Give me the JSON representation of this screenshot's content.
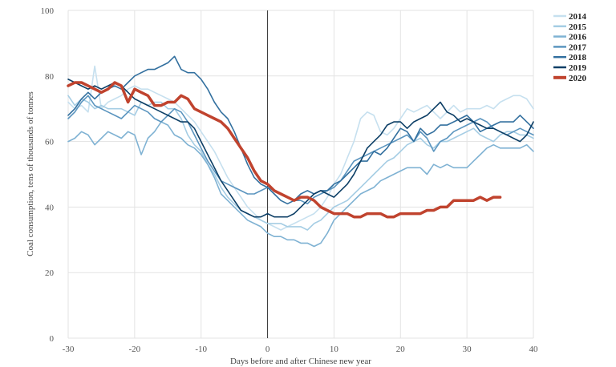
{
  "chart_data": {
    "type": "line",
    "title": "",
    "xlabel": "Days before and after Chinese new year",
    "ylabel": "Coal consumption, tens of thousands of tonnes",
    "xlim": [
      -30,
      40
    ],
    "ylim": [
      0,
      100
    ],
    "x_ticks": [
      -30,
      -20,
      -10,
      0,
      10,
      20,
      30,
      40
    ],
    "y_ticks": [
      0,
      20,
      40,
      60,
      80,
      100
    ],
    "grid": true,
    "legend_position": "top-right",
    "reference_line_x": 0,
    "series": [
      {
        "name": "2014",
        "color": "#c6e0ef",
        "x": [
          -30,
          -29,
          -28,
          -27,
          -26,
          -25,
          -24,
          -23,
          -22,
          -21,
          -20,
          -19,
          -18,
          -17,
          -16,
          -15,
          -14,
          -13,
          -12,
          -11,
          -10,
          -9,
          -8,
          -7,
          -6,
          -5,
          -4,
          -3,
          -2,
          -1,
          0,
          1,
          2,
          3,
          4,
          5,
          6,
          7,
          8,
          9,
          10,
          11,
          12,
          13,
          14,
          15,
          16,
          17,
          18,
          19,
          20,
          21,
          22,
          23,
          24,
          25,
          26,
          27,
          28,
          29,
          30,
          31,
          32,
          33,
          34,
          35,
          36,
          37,
          38,
          39,
          40
        ],
        "y": [
          72,
          70,
          71,
          69,
          83,
          70,
          72,
          73,
          74,
          76,
          77,
          76,
          76,
          75,
          74,
          73,
          72,
          70,
          68,
          66,
          63,
          60,
          57,
          53,
          49,
          46,
          43,
          40,
          38,
          36,
          35,
          34,
          33,
          34,
          35,
          36,
          37,
          38,
          40,
          43,
          47,
          50,
          55,
          60,
          67,
          69,
          68,
          63,
          62,
          64,
          67,
          70,
          69,
          70,
          71,
          69,
          67,
          69,
          71,
          69,
          70,
          70,
          70,
          71,
          70,
          72,
          73,
          74,
          74,
          73,
          70
        ]
      },
      {
        "name": "2015",
        "color": "#a5cde4",
        "x": [
          -30,
          -29,
          -28,
          -27,
          -26,
          -25,
          -24,
          -23,
          -22,
          -21,
          -20,
          -19,
          -18,
          -17,
          -16,
          -15,
          -14,
          -13,
          -12,
          -11,
          -10,
          -9,
          -8,
          -7,
          -6,
          -5,
          -4,
          -3,
          -2,
          -1,
          0,
          1,
          2,
          3,
          4,
          5,
          6,
          7,
          8,
          9,
          10,
          11,
          12,
          13,
          14,
          15,
          16,
          17,
          18,
          19,
          20,
          21,
          22,
          23,
          24,
          25,
          26,
          27,
          28,
          29,
          30,
          31,
          32,
          33,
          34,
          35,
          36,
          37,
          38,
          39,
          40
        ],
        "y": [
          74,
          71,
          73,
          72,
          70,
          71,
          70,
          70,
          70,
          69,
          68,
          72,
          71,
          72,
          72,
          70,
          70,
          67,
          62,
          59,
          57,
          53,
          50,
          46,
          43,
          41,
          39,
          38,
          37,
          36,
          35,
          35,
          35,
          34,
          34,
          34,
          33,
          35,
          36,
          38,
          40,
          41,
          42,
          44,
          46,
          48,
          50,
          52,
          54,
          55,
          57,
          59,
          60,
          61,
          59,
          58,
          60,
          60,
          61,
          62,
          63,
          64,
          62,
          61,
          60,
          62,
          63,
          63,
          62,
          62,
          61
        ]
      },
      {
        "name": "2016",
        "color": "#7fb2d3",
        "x": [
          -30,
          -29,
          -28,
          -27,
          -26,
          -25,
          -24,
          -23,
          -22,
          -21,
          -20,
          -19,
          -18,
          -17,
          -16,
          -15,
          -14,
          -13,
          -12,
          -11,
          -10,
          -9,
          -8,
          -7,
          -6,
          -5,
          -4,
          -3,
          -2,
          -1,
          0,
          1,
          2,
          3,
          4,
          5,
          6,
          7,
          8,
          9,
          10,
          11,
          12,
          13,
          14,
          15,
          16,
          17,
          18,
          19,
          20,
          21,
          22,
          23,
          24,
          25,
          26,
          27,
          28,
          29,
          30,
          31,
          32,
          33,
          34,
          35,
          36,
          37,
          38,
          39,
          40
        ],
        "y": [
          60,
          61,
          63,
          62,
          59,
          61,
          63,
          62,
          61,
          63,
          62,
          56,
          61,
          63,
          66,
          65,
          62,
          61,
          59,
          58,
          56,
          53,
          49,
          44,
          42,
          40,
          38,
          36,
          35,
          34,
          32,
          31,
          31,
          30,
          30,
          29,
          29,
          28,
          29,
          32,
          36,
          38,
          40,
          42,
          44,
          45,
          46,
          48,
          49,
          50,
          51,
          52,
          52,
          52,
          50,
          53,
          52,
          53,
          52,
          52,
          52,
          54,
          56,
          58,
          59,
          58,
          58,
          58,
          58,
          59,
          57
        ]
      },
      {
        "name": "2017",
        "color": "#5b95bf",
        "x": [
          -30,
          -29,
          -28,
          -27,
          -26,
          -25,
          -24,
          -23,
          -22,
          -21,
          -20,
          -19,
          -18,
          -17,
          -16,
          -15,
          -14,
          -13,
          -12,
          -11,
          -10,
          -9,
          -8,
          -7,
          -6,
          -5,
          -4,
          -3,
          -2,
          -1,
          0,
          1,
          2,
          3,
          4,
          5,
          6,
          7,
          8,
          9,
          10,
          11,
          12,
          13,
          14,
          15,
          16,
          17,
          18,
          19,
          20,
          21,
          22,
          23,
          24,
          25,
          26,
          27,
          28,
          29,
          30,
          31,
          32,
          33,
          34,
          35,
          36,
          37,
          38,
          39,
          40
        ],
        "y": [
          67,
          69,
          72,
          74,
          71,
          70,
          69,
          68,
          67,
          69,
          71,
          70,
          69,
          67,
          66,
          68,
          70,
          69,
          66,
          62,
          58,
          54,
          51,
          48,
          47,
          46,
          45,
          44,
          44,
          45,
          46,
          45,
          44,
          43,
          42,
          42,
          41,
          43,
          44,
          45,
          46,
          48,
          51,
          54,
          55,
          56,
          57,
          58,
          59,
          60,
          61,
          62,
          60,
          63,
          61,
          57,
          60,
          61,
          63,
          64,
          65,
          66,
          67,
          66,
          64,
          63,
          62,
          63,
          64,
          63,
          62
        ]
      },
      {
        "name": "2018",
        "color": "#33709f",
        "x": [
          -30,
          -29,
          -28,
          -27,
          -26,
          -25,
          -24,
          -23,
          -22,
          -21,
          -20,
          -19,
          -18,
          -17,
          -16,
          -15,
          -14,
          -13,
          -12,
          -11,
          -10,
          -9,
          -8,
          -7,
          -6,
          -5,
          -4,
          -3,
          -2,
          -1,
          0,
          1,
          2,
          3,
          4,
          5,
          6,
          7,
          8,
          9,
          10,
          11,
          12,
          13,
          14,
          15,
          16,
          17,
          18,
          19,
          20,
          21,
          22,
          23,
          24,
          25,
          26,
          27,
          28,
          29,
          30,
          31,
          32,
          33,
          34,
          35,
          36,
          37,
          38,
          39,
          40
        ],
        "y": [
          68,
          70,
          73,
          75,
          73,
          75,
          76,
          77,
          76,
          78,
          80,
          81,
          82,
          82,
          83,
          84,
          86,
          82,
          81,
          81,
          79,
          76,
          72,
          69,
          67,
          63,
          58,
          53,
          49,
          47,
          46,
          44,
          42,
          41,
          42,
          44,
          45,
          44,
          45,
          45,
          47,
          48,
          50,
          52,
          54,
          54,
          57,
          56,
          58,
          61,
          64,
          63,
          60,
          64,
          62,
          63,
          65,
          65,
          66,
          67,
          68,
          66,
          63,
          64,
          65,
          66,
          66,
          66,
          68,
          66,
          64
        ]
      },
      {
        "name": "2019",
        "color": "#0d3f66",
        "x": [
          -30,
          -29,
          -28,
          -27,
          -26,
          -25,
          -24,
          -23,
          -22,
          -21,
          -20,
          -19,
          -18,
          -17,
          -16,
          -15,
          -14,
          -13,
          -12,
          -11,
          -10,
          -9,
          -8,
          -7,
          -6,
          -5,
          -4,
          -3,
          -2,
          -1,
          0,
          1,
          2,
          3,
          4,
          5,
          6,
          7,
          8,
          9,
          10,
          11,
          12,
          13,
          14,
          15,
          16,
          17,
          18,
          19,
          20,
          21,
          22,
          23,
          24,
          25,
          26,
          27,
          28,
          29,
          30,
          31,
          32,
          33,
          34,
          35,
          36,
          37,
          38,
          39,
          40
        ],
        "y": [
          79,
          78,
          77,
          76,
          77,
          76,
          77,
          78,
          77,
          75,
          73,
          72,
          71,
          70,
          69,
          68,
          67,
          66,
          66,
          64,
          60,
          56,
          52,
          48,
          45,
          42,
          39,
          38,
          37,
          37,
          38,
          37,
          37,
          37,
          38,
          40,
          42,
          44,
          45,
          44,
          43,
          45,
          47,
          50,
          54,
          58,
          60,
          62,
          65,
          66,
          66,
          64,
          66,
          67,
          68,
          70,
          72,
          69,
          68,
          66,
          67,
          66,
          65,
          64,
          64,
          63,
          62,
          61,
          60,
          62,
          66
        ]
      },
      {
        "name": "2020",
        "color": "#c0432e",
        "thick": true,
        "x": [
          -30,
          -29,
          -28,
          -27,
          -26,
          -25,
          -24,
          -23,
          -22,
          -21,
          -20,
          -19,
          -18,
          -17,
          -16,
          -15,
          -14,
          -13,
          -12,
          -11,
          -10,
          -9,
          -8,
          -7,
          -6,
          -5,
          -4,
          -3,
          -2,
          -1,
          0,
          1,
          2,
          3,
          4,
          5,
          6,
          7,
          8,
          9,
          10,
          11,
          12,
          13,
          14,
          15,
          16,
          17,
          18,
          19,
          20,
          21,
          22,
          23,
          24,
          25,
          26,
          27,
          28,
          29,
          30,
          31,
          32,
          33,
          34,
          35
        ],
        "y": [
          77,
          78,
          78,
          77,
          76,
          75,
          76,
          78,
          77,
          72,
          76,
          75,
          74,
          71,
          71,
          72,
          72,
          74,
          73,
          70,
          69,
          68,
          67,
          66,
          64,
          61,
          58,
          55,
          51,
          48,
          47,
          45,
          44,
          43,
          42,
          43,
          43,
          42,
          40,
          39,
          38,
          38,
          38,
          37,
          37,
          38,
          38,
          38,
          37,
          37,
          38,
          38,
          38,
          38,
          39,
          39,
          40,
          40,
          42,
          42,
          42,
          42,
          43,
          42,
          43,
          43
        ]
      }
    ]
  }
}
